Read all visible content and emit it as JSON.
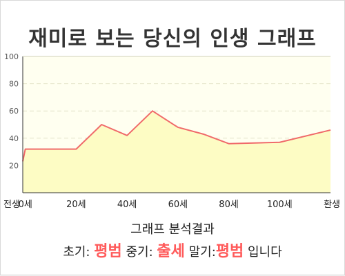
{
  "title": "재미로 보는 당신의 인생 그래프",
  "chart_data": {
    "type": "area",
    "x_labels": [
      "전생",
      "0세",
      "20세",
      "40세",
      "60세",
      "80세",
      "100세",
      "환생"
    ],
    "x": [
      -1,
      0,
      20,
      30,
      40,
      50,
      60,
      70,
      80,
      100,
      120
    ],
    "y": [
      23,
      32,
      32,
      50,
      42,
      60,
      48,
      43,
      36,
      37,
      46
    ],
    "y_ticks": [
      20,
      40,
      60,
      80,
      100
    ],
    "ylim": [
      0,
      100
    ],
    "grid": true,
    "colors": {
      "line": "#f06a6a",
      "fill": "#fdfcc4",
      "plot_bg": "#fffff0",
      "grid": "#e2e2c8",
      "axis": "#333333"
    }
  },
  "result": {
    "heading": "그래프 분석결과",
    "early_label": "초기:",
    "early_value": "평범",
    "mid_label": "중기:",
    "mid_value": "출세",
    "late_label": "말기:",
    "late_value": "평범",
    "suffix": "입니다"
  }
}
